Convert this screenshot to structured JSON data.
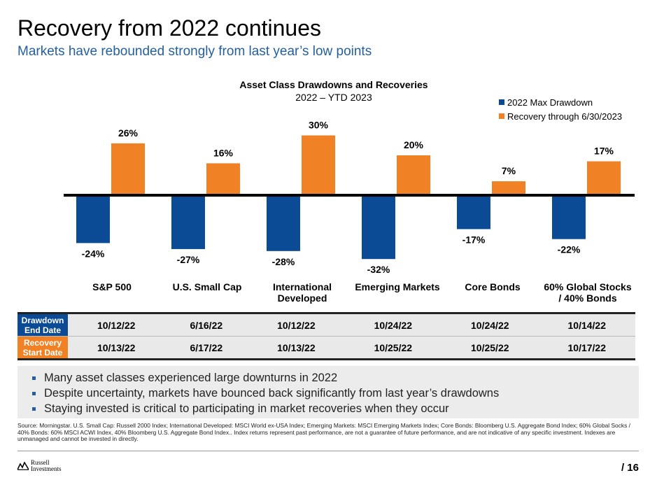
{
  "header": {
    "title": "Recovery from 2022 continues",
    "subtitle": "Markets have rebounded strongly from last year’s low points"
  },
  "chart_data": {
    "type": "bar",
    "title": "Asset Class Drawdowns and Recoveries",
    "subtitle": "2022 – YTD 2023",
    "categories": [
      [
        "S&P 500"
      ],
      [
        "U.S. Small Cap"
      ],
      [
        "International",
        "Developed"
      ],
      [
        "Emerging Markets"
      ],
      [
        "Core Bonds"
      ],
      [
        "60% Global Stocks",
        "/ 40% Bonds"
      ]
    ],
    "series": [
      {
        "name": "2022 Max Drawdown",
        "values": [
          -24,
          -27,
          -28,
          -32,
          -17,
          -22
        ],
        "labels": [
          "-24%",
          "-27%",
          "-28%",
          "-32%",
          "-17%",
          "-22%"
        ],
        "color": "#0b4a94"
      },
      {
        "name": "Recovery through 6/30/2023",
        "values": [
          26,
          16,
          30,
          20,
          7,
          17
        ],
        "labels": [
          "26%",
          "16%",
          "30%",
          "20%",
          "7%",
          "17%"
        ],
        "color": "#f08225"
      }
    ],
    "ylim": [
      -32,
      30
    ],
    "grid": false,
    "legend": "top-right"
  },
  "table": {
    "row_headers": [
      [
        "Drawdown",
        "End Date"
      ],
      [
        "Recovery",
        "Start Date"
      ]
    ],
    "drawdown_end": [
      "10/12/22",
      "6/16/22",
      "10/12/22",
      "10/24/22",
      "10/24/22",
      "10/14/22"
    ],
    "recovery_start": [
      "10/13/22",
      "6/17/22",
      "10/13/22",
      "10/25/22",
      "10/25/22",
      "10/17/22"
    ]
  },
  "bullets": [
    "Many asset classes experienced large downturns in 2022",
    "Despite uncertainty, markets have bounced back significantly from last year’s drawdowns",
    "Staying invested is critical to participating in market recoveries when they occur"
  ],
  "source": "Source: Morningstar.  U.S. Small Cap: Russell 2000 Index; International Developed: MSCI World ex-USA Index; Emerging Markets: MSCI Emerging Markets Index; Core Bonds: Bloomberg U.S. Aggregate Bond Index; 60% Global Socks / 40% Bonds: 60% MSCI ACWI Index, 40% Bloomberg U.S. Aggregate Bond Index.. Index returns represent past performance, are not a guarantee of future performance, and are not indicative of any specific investment. Indexes are unmanaged and cannot be invested in directly.",
  "footer": {
    "logo_line1": "Russell",
    "logo_line2": "Investments",
    "page": "/ 16"
  },
  "colors": {
    "drawdown": "#0b4a94",
    "recovery": "#f08225",
    "subtitle": "#2460a0"
  }
}
